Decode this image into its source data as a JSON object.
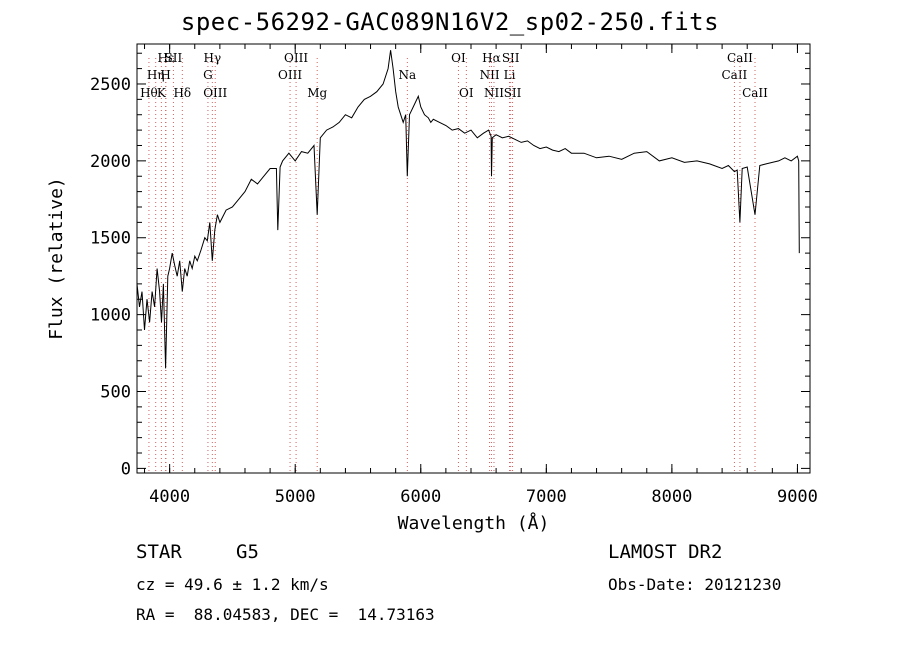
{
  "chart_data": {
    "type": "line",
    "title": "spec-56292-GAC089N16V2_sp02-250.fits",
    "xlabel": "Wavelength (Å)",
    "ylabel": "Flux (relative)",
    "xlim": [
      3740,
      9100
    ],
    "ylim": [
      -30,
      2760
    ],
    "x_ticks": [
      4000,
      5000,
      6000,
      7000,
      8000,
      9000
    ],
    "x_tick_labels": [
      "4000",
      "5000",
      "6000",
      "7000",
      "8000",
      "9000"
    ],
    "y_ticks": [
      0,
      500,
      1000,
      1500,
      2000,
      2500
    ],
    "y_tick_labels": [
      "0",
      "500",
      "1000",
      "1500",
      "2000",
      "2500"
    ],
    "grid": false,
    "series": [
      {
        "color": "#000000",
        "x": [
          3740,
          3760,
          3780,
          3800,
          3820,
          3840,
          3860,
          3880,
          3900,
          3920,
          3935,
          3950,
          3968,
          3985,
          4000,
          4020,
          4040,
          4060,
          4080,
          4101,
          4120,
          4140,
          4160,
          4180,
          4200,
          4220,
          4250,
          4280,
          4300,
          4320,
          4340,
          4360,
          4380,
          4400,
          4450,
          4500,
          4550,
          4600,
          4650,
          4700,
          4750,
          4800,
          4850,
          4861,
          4880,
          4900,
          4950,
          5000,
          5050,
          5100,
          5150,
          5175,
          5200,
          5250,
          5300,
          5350,
          5400,
          5450,
          5500,
          5550,
          5600,
          5650,
          5700,
          5740,
          5760,
          5780,
          5800,
          5820,
          5840,
          5860,
          5880,
          5893,
          5910,
          5940,
          5980,
          6000,
          6030,
          6060,
          6080,
          6100,
          6150,
          6200,
          6250,
          6300,
          6350,
          6400,
          6450,
          6500,
          6540,
          6560,
          6563,
          6570,
          6600,
          6650,
          6700,
          6750,
          6800,
          6850,
          6900,
          6950,
          7000,
          7050,
          7100,
          7150,
          7200,
          7300,
          7400,
          7500,
          7600,
          7700,
          7800,
          7900,
          8000,
          8100,
          8200,
          8300,
          8400,
          8450,
          8498,
          8520,
          8542,
          8560,
          8600,
          8662,
          8700,
          8750,
          8800,
          8850,
          8900,
          8950,
          9000,
          9010,
          9015
        ],
        "y": [
          1200,
          1050,
          1150,
          900,
          1100,
          950,
          1150,
          1050,
          1300,
          1150,
          950,
          1200,
          650,
          1250,
          1300,
          1400,
          1320,
          1250,
          1350,
          1150,
          1300,
          1250,
          1350,
          1300,
          1380,
          1350,
          1420,
          1500,
          1480,
          1600,
          1350,
          1550,
          1650,
          1600,
          1680,
          1700,
          1750,
          1800,
          1880,
          1850,
          1900,
          1950,
          1950,
          1550,
          1960,
          2000,
          2050,
          2000,
          2060,
          2050,
          2100,
          1650,
          2150,
          2200,
          2220,
          2250,
          2300,
          2280,
          2350,
          2400,
          2420,
          2450,
          2500,
          2600,
          2720,
          2600,
          2450,
          2350,
          2300,
          2250,
          2300,
          1900,
          2300,
          2350,
          2420,
          2350,
          2300,
          2280,
          2250,
          2270,
          2250,
          2230,
          2200,
          2210,
          2180,
          2200,
          2150,
          2180,
          2200,
          2160,
          1900,
          2150,
          2170,
          2150,
          2160,
          2140,
          2120,
          2130,
          2100,
          2080,
          2090,
          2070,
          2060,
          2080,
          2050,
          2050,
          2020,
          2030,
          2010,
          2050,
          2060,
          2000,
          2020,
          1990,
          2000,
          1980,
          1950,
          1970,
          1930,
          1940,
          1600,
          1950,
          1960,
          1650,
          1970,
          1980,
          1990,
          2000,
          2020,
          2000,
          2030,
          2000,
          1400
        ]
      }
    ],
    "line_markers": [
      {
        "wave": 3835,
        "label": "Hθ",
        "row": 2
      },
      {
        "wave": 3889,
        "label": "Hη",
        "row": 1
      },
      {
        "wave": 3934,
        "label": "K",
        "row": 2
      },
      {
        "wave": 3970,
        "label": "Hε",
        "row": 0
      },
      {
        "wave": 3968,
        "label": "H",
        "row": 1
      },
      {
        "wave": 4030,
        "label": "SII",
        "row": 0
      },
      {
        "wave": 4101,
        "label": "Hδ",
        "row": 2
      },
      {
        "wave": 4305,
        "label": "G",
        "row": 1
      },
      {
        "wave": 4340,
        "label": "Hγ",
        "row": 0
      },
      {
        "wave": 4363,
        "label": "OIII",
        "row": 2
      },
      {
        "wave": 4959,
        "label": "OIII",
        "row": 1
      },
      {
        "wave": 5007,
        "label": "OIII",
        "row": 0
      },
      {
        "wave": 5175,
        "label": "Mg",
        "row": 2
      },
      {
        "wave": 5893,
        "label": "Na",
        "row": 1
      },
      {
        "wave": 6300,
        "label": "OI",
        "row": 0
      },
      {
        "wave": 6363,
        "label": "OI",
        "row": 2
      },
      {
        "wave": 6548,
        "label": "NII",
        "row": 1
      },
      {
        "wave": 6563,
        "label": "Hα",
        "row": 0
      },
      {
        "wave": 6583,
        "label": "NII",
        "row": 2
      },
      {
        "wave": 6716,
        "label": "SII",
        "row": 0
      },
      {
        "wave": 6707,
        "label": "Li",
        "row": 1
      },
      {
        "wave": 6731,
        "label": "SII",
        "row": 2
      },
      {
        "wave": 8498,
        "label": "CaII",
        "row": 1
      },
      {
        "wave": 8542,
        "label": "CaII",
        "row": 0
      },
      {
        "wave": 8662,
        "label": "CaII",
        "row": 2
      }
    ]
  },
  "info": {
    "object_class": "STAR",
    "subclass": "G5",
    "survey": "LAMOST DR2",
    "redshift_line": "cz = 49.6 ± 1.2 km/s",
    "obs_date_line": "Obs-Date: 20121230",
    "coords_line": "RA =  88.04583, DEC =  14.73163"
  }
}
